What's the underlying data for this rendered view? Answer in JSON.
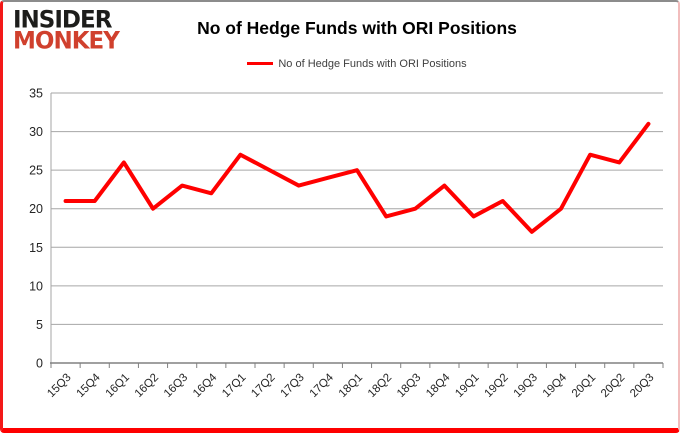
{
  "logo": {
    "line1": "INSIDER",
    "line2": "MONKEY"
  },
  "header": {
    "title": "No of Hedge Funds with ORI Positions"
  },
  "legend": {
    "label": "No of Hedge Funds with ORI Positions",
    "swatch_color": "#ff0000"
  },
  "chart_data": {
    "type": "line",
    "title": "No of Hedge Funds with ORI Positions",
    "categories": [
      "15Q3",
      "15Q4",
      "16Q1",
      "16Q2",
      "16Q3",
      "16Q4",
      "17Q1",
      "17Q2",
      "17Q3",
      "17Q4",
      "18Q1",
      "18Q2",
      "18Q3",
      "18Q4",
      "19Q1",
      "19Q2",
      "19Q3",
      "19Q4",
      "20Q1",
      "20Q2",
      "20Q3"
    ],
    "series": [
      {
        "name": "No of Hedge Funds with ORI Positions",
        "color": "#ff0000",
        "values": [
          21,
          21,
          26,
          20,
          23,
          22,
          27,
          25,
          23,
          24,
          25,
          19,
          20,
          23,
          19,
          21,
          17,
          20,
          27,
          26,
          31
        ]
      }
    ],
    "xlabel": "",
    "ylabel": "",
    "ylim": [
      0,
      35
    ],
    "yticks": [
      0,
      5,
      10,
      15,
      20,
      25,
      30,
      35
    ],
    "grid": true,
    "legend_position": "top-center",
    "colors": {
      "line": "#ff0000",
      "grid": "#a6a6a6",
      "axis": "#808080",
      "tick_text": "#262626"
    }
  }
}
